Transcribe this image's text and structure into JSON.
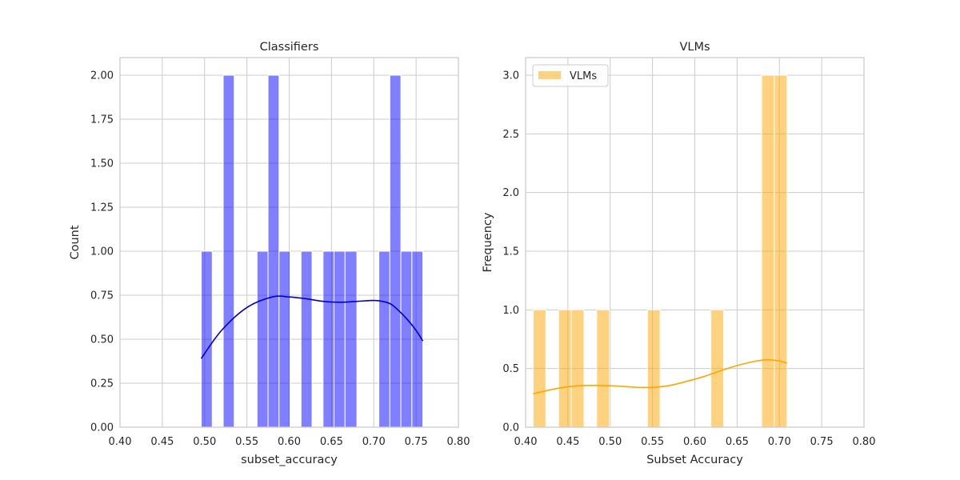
{
  "colors": {
    "classifiers": "#0000ff",
    "vlms": "#ffa500",
    "grid": "#cccccc"
  },
  "chart_data": [
    {
      "type": "bar",
      "histogram": true,
      "title": "Classifiers",
      "xlabel": "subset_accuracy",
      "ylabel": "Count",
      "xlim": [
        0.4,
        0.8
      ],
      "ylim": [
        0,
        2.1
      ],
      "xticks": [
        0.4,
        0.45,
        0.5,
        0.55,
        0.6,
        0.65,
        0.7,
        0.75,
        0.8
      ],
      "xtick_labels": [
        "0.40",
        "0.45",
        "0.50",
        "0.55",
        "0.60",
        "0.65",
        "0.70",
        "0.75",
        "0.80"
      ],
      "yticks": [
        0,
        0.25,
        0.5,
        0.75,
        1.0,
        1.25,
        1.5,
        1.75,
        2.0
      ],
      "ytick_labels": [
        "0.00",
        "0.25",
        "0.50",
        "0.75",
        "1.00",
        "1.25",
        "1.50",
        "1.75",
        "2.00"
      ],
      "grid": true,
      "legend": null,
      "color": "#0000ff",
      "bins": [
        {
          "x0": 0.496,
          "x1": 0.509,
          "count": 1
        },
        {
          "x0": 0.522,
          "x1": 0.535,
          "count": 2
        },
        {
          "x0": 0.562,
          "x1": 0.575,
          "count": 1
        },
        {
          "x0": 0.575,
          "x1": 0.588,
          "count": 2
        },
        {
          "x0": 0.588,
          "x1": 0.601,
          "count": 1
        },
        {
          "x0": 0.614,
          "x1": 0.627,
          "count": 1
        },
        {
          "x0": 0.64,
          "x1": 0.653,
          "count": 1
        },
        {
          "x0": 0.653,
          "x1": 0.666,
          "count": 1
        },
        {
          "x0": 0.666,
          "x1": 0.68,
          "count": 1
        },
        {
          "x0": 0.706,
          "x1": 0.719,
          "count": 1
        },
        {
          "x0": 0.719,
          "x1": 0.732,
          "count": 2
        },
        {
          "x0": 0.732,
          "x1": 0.745,
          "count": 1
        },
        {
          "x0": 0.745,
          "x1": 0.758,
          "count": 1
        }
      ],
      "kde": [
        [
          0.496,
          0.39
        ],
        [
          0.52,
          0.55
        ],
        [
          0.55,
          0.68
        ],
        [
          0.58,
          0.74
        ],
        [
          0.6,
          0.74
        ],
        [
          0.62,
          0.73
        ],
        [
          0.64,
          0.715
        ],
        [
          0.66,
          0.71
        ],
        [
          0.68,
          0.715
        ],
        [
          0.7,
          0.72
        ],
        [
          0.71,
          0.715
        ],
        [
          0.72,
          0.7
        ],
        [
          0.73,
          0.66
        ],
        [
          0.74,
          0.61
        ],
        [
          0.75,
          0.55
        ],
        [
          0.758,
          0.49
        ]
      ]
    },
    {
      "type": "bar",
      "histogram": true,
      "title": "VLMs",
      "xlabel": "Subset Accuracy",
      "ylabel": "Frequency",
      "xlim": [
        0.4,
        0.8
      ],
      "ylim": [
        0,
        3.15
      ],
      "xticks": [
        0.4,
        0.45,
        0.5,
        0.55,
        0.6,
        0.65,
        0.7,
        0.75,
        0.8
      ],
      "xtick_labels": [
        "0.40",
        "0.45",
        "0.50",
        "0.55",
        "0.60",
        "0.65",
        "0.70",
        "0.75",
        "0.80"
      ],
      "yticks": [
        0,
        0.5,
        1.0,
        1.5,
        2.0,
        2.5,
        3.0
      ],
      "ytick_labels": [
        "0.0",
        "0.5",
        "1.0",
        "1.5",
        "2.0",
        "2.5",
        "3.0"
      ],
      "grid": true,
      "legend": {
        "position": "top-left",
        "entries": [
          "VLMs"
        ]
      },
      "color": "#ffa500",
      "bins": [
        {
          "x0": 0.409,
          "x1": 0.424,
          "count": 1
        },
        {
          "x0": 0.439,
          "x1": 0.454,
          "count": 1
        },
        {
          "x0": 0.454,
          "x1": 0.469,
          "count": 1
        },
        {
          "x0": 0.484,
          "x1": 0.499,
          "count": 1
        },
        {
          "x0": 0.544,
          "x1": 0.559,
          "count": 1
        },
        {
          "x0": 0.619,
          "x1": 0.634,
          "count": 1
        },
        {
          "x0": 0.679,
          "x1": 0.694,
          "count": 3
        },
        {
          "x0": 0.694,
          "x1": 0.709,
          "count": 3
        }
      ],
      "kde": [
        [
          0.409,
          0.285
        ],
        [
          0.43,
          0.32
        ],
        [
          0.45,
          0.345
        ],
        [
          0.47,
          0.355
        ],
        [
          0.49,
          0.355
        ],
        [
          0.51,
          0.35
        ],
        [
          0.53,
          0.34
        ],
        [
          0.55,
          0.34
        ],
        [
          0.57,
          0.355
        ],
        [
          0.59,
          0.39
        ],
        [
          0.61,
          0.43
        ],
        [
          0.63,
          0.48
        ],
        [
          0.65,
          0.525
        ],
        [
          0.67,
          0.56
        ],
        [
          0.685,
          0.575
        ],
        [
          0.7,
          0.565
        ],
        [
          0.709,
          0.545
        ]
      ]
    }
  ]
}
